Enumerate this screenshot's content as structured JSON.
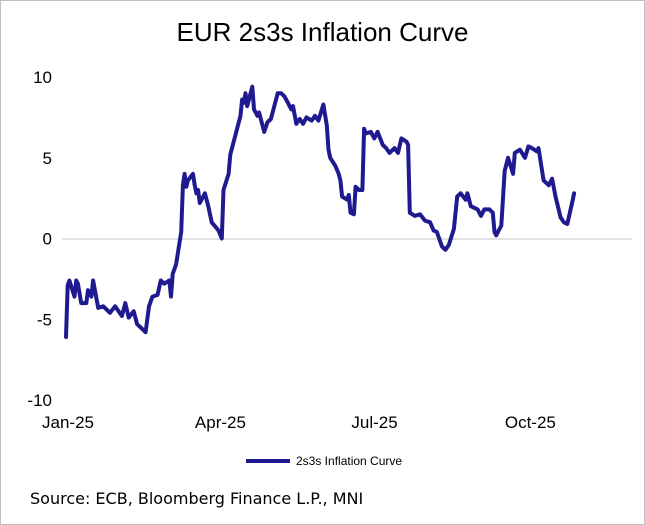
{
  "colors": {
    "series": "#1f1a8f",
    "axis": "#d9d9d9"
  },
  "source": "Source: ECB, Bloomberg Finance L.P., MNI",
  "chart_data": {
    "type": "line",
    "title": "EUR 2s3s Inflation Curve",
    "xlabel": "",
    "ylabel": "",
    "ylim": [
      -10,
      10
    ],
    "yticks": [
      "10",
      "5",
      "0",
      "-5",
      "-10"
    ],
    "xticks": [
      "Jan-25",
      "Apr-25",
      "Jul-25",
      "Oct-25"
    ],
    "xlim": [
      "2025-01-01",
      "2025-11-30"
    ],
    "grid": false,
    "legend_position": "bottom",
    "series": [
      {
        "name": "2s3s Inflation Curve",
        "points": [
          [
            "2025-01-01",
            -6.1
          ],
          [
            "2025-01-02",
            -2.9
          ],
          [
            "2025-01-03",
            -2.6
          ],
          [
            "2025-01-06",
            -3.6
          ],
          [
            "2025-01-07",
            -2.6
          ],
          [
            "2025-01-08",
            -2.8
          ],
          [
            "2025-01-10",
            -4.0
          ],
          [
            "2025-01-13",
            -4.0
          ],
          [
            "2025-01-14",
            -3.2
          ],
          [
            "2025-01-16",
            -3.6
          ],
          [
            "2025-01-17",
            -2.6
          ],
          [
            "2025-01-20",
            -4.3
          ],
          [
            "2025-01-23",
            -4.2
          ],
          [
            "2025-01-27",
            -4.6
          ],
          [
            "2025-01-30",
            -4.2
          ],
          [
            "2025-02-03",
            -4.8
          ],
          [
            "2025-02-05",
            -4.0
          ],
          [
            "2025-02-07",
            -4.9
          ],
          [
            "2025-02-10",
            -4.5
          ],
          [
            "2025-02-12",
            -5.3
          ],
          [
            "2025-02-14",
            -5.5
          ],
          [
            "2025-02-17",
            -5.8
          ],
          [
            "2025-02-19",
            -4.2
          ],
          [
            "2025-02-21",
            -3.6
          ],
          [
            "2025-02-24",
            -3.5
          ],
          [
            "2025-02-26",
            -2.6
          ],
          [
            "2025-02-28",
            -2.8
          ],
          [
            "2025-03-03",
            -2.6
          ],
          [
            "2025-03-04",
            -3.6
          ],
          [
            "2025-03-05",
            -2.2
          ],
          [
            "2025-03-07",
            -1.6
          ],
          [
            "2025-03-10",
            0.4
          ],
          [
            "2025-03-11",
            3.3
          ],
          [
            "2025-03-12",
            4.0
          ],
          [
            "2025-03-13",
            3.2
          ],
          [
            "2025-03-14",
            3.6
          ],
          [
            "2025-03-17",
            4.0
          ],
          [
            "2025-03-18",
            3.3
          ],
          [
            "2025-03-19",
            2.8
          ],
          [
            "2025-03-20",
            3.0
          ],
          [
            "2025-03-21",
            2.2
          ],
          [
            "2025-03-24",
            2.8
          ],
          [
            "2025-03-26",
            2.0
          ],
          [
            "2025-03-28",
            1.0
          ],
          [
            "2025-04-01",
            0.5
          ],
          [
            "2025-04-03",
            0.0
          ],
          [
            "2025-04-04",
            3.0
          ],
          [
            "2025-04-07",
            4.0
          ],
          [
            "2025-04-08",
            5.2
          ],
          [
            "2025-04-10",
            6.0
          ],
          [
            "2025-04-14",
            7.6
          ],
          [
            "2025-04-15",
            8.6
          ],
          [
            "2025-04-16",
            8.4
          ],
          [
            "2025-04-17",
            9.0
          ],
          [
            "2025-04-18",
            8.2
          ],
          [
            "2025-04-21",
            9.4
          ],
          [
            "2025-04-22",
            8.0
          ],
          [
            "2025-04-24",
            7.6
          ],
          [
            "2025-04-25",
            7.8
          ],
          [
            "2025-04-28",
            6.6
          ],
          [
            "2025-04-30",
            7.2
          ],
          [
            "2025-05-02",
            7.4
          ],
          [
            "2025-05-06",
            9.0
          ],
          [
            "2025-05-08",
            9.0
          ],
          [
            "2025-05-10",
            8.8
          ],
          [
            "2025-05-12",
            8.4
          ],
          [
            "2025-05-14",
            8.0
          ],
          [
            "2025-05-15",
            8.2
          ],
          [
            "2025-05-17",
            7.1
          ],
          [
            "2025-05-19",
            7.4
          ],
          [
            "2025-05-21",
            7.1
          ],
          [
            "2025-05-23",
            7.5
          ],
          [
            "2025-05-26",
            7.3
          ],
          [
            "2025-05-28",
            7.6
          ],
          [
            "2025-05-30",
            7.3
          ],
          [
            "2025-06-02",
            8.3
          ],
          [
            "2025-06-04",
            7.0
          ],
          [
            "2025-06-05",
            5.5
          ],
          [
            "2025-06-06",
            5.0
          ],
          [
            "2025-06-09",
            4.5
          ],
          [
            "2025-06-11",
            4.0
          ],
          [
            "2025-06-12",
            3.6
          ],
          [
            "2025-06-13",
            2.6
          ],
          [
            "2025-06-16",
            2.4
          ],
          [
            "2025-06-17",
            2.7
          ],
          [
            "2025-06-18",
            1.6
          ],
          [
            "2025-06-20",
            1.5
          ],
          [
            "2025-06-21",
            3.2
          ],
          [
            "2025-06-23",
            3.0
          ],
          [
            "2025-06-25",
            3.0
          ],
          [
            "2025-06-26",
            6.8
          ],
          [
            "2025-06-27",
            6.5
          ],
          [
            "2025-06-30",
            6.6
          ],
          [
            "2025-07-02",
            6.2
          ],
          [
            "2025-07-04",
            6.6
          ],
          [
            "2025-07-07",
            5.8
          ],
          [
            "2025-07-09",
            5.6
          ],
          [
            "2025-07-11",
            5.3
          ],
          [
            "2025-07-14",
            5.6
          ],
          [
            "2025-07-16",
            5.3
          ],
          [
            "2025-07-18",
            6.2
          ],
          [
            "2025-07-21",
            6.0
          ],
          [
            "2025-07-22",
            5.8
          ],
          [
            "2025-07-23",
            1.6
          ],
          [
            "2025-07-26",
            1.4
          ],
          [
            "2025-07-29",
            1.5
          ],
          [
            "2025-08-01",
            1.1
          ],
          [
            "2025-08-04",
            1.0
          ],
          [
            "2025-08-06",
            0.5
          ],
          [
            "2025-08-08",
            0.4
          ],
          [
            "2025-08-11",
            -0.5
          ],
          [
            "2025-08-13",
            -0.7
          ],
          [
            "2025-08-15",
            -0.4
          ],
          [
            "2025-08-18",
            0.6
          ],
          [
            "2025-08-20",
            2.6
          ],
          [
            "2025-08-22",
            2.8
          ],
          [
            "2025-08-25",
            2.4
          ],
          [
            "2025-08-26",
            2.8
          ],
          [
            "2025-08-28",
            2.0
          ],
          [
            "2025-09-01",
            1.8
          ],
          [
            "2025-09-03",
            1.4
          ],
          [
            "2025-09-05",
            1.8
          ],
          [
            "2025-09-08",
            1.8
          ],
          [
            "2025-09-10",
            1.6
          ],
          [
            "2025-09-11",
            0.4
          ],
          [
            "2025-09-12",
            0.2
          ],
          [
            "2025-09-15",
            0.8
          ],
          [
            "2025-09-17",
            4.2
          ],
          [
            "2025-09-19",
            5.0
          ],
          [
            "2025-09-22",
            4.0
          ],
          [
            "2025-09-23",
            5.3
          ],
          [
            "2025-09-26",
            5.5
          ],
          [
            "2025-09-29",
            5.0
          ],
          [
            "2025-10-01",
            5.7
          ],
          [
            "2025-10-03",
            5.6
          ],
          [
            "2025-10-06",
            5.4
          ],
          [
            "2025-10-07",
            5.6
          ],
          [
            "2025-10-10",
            3.6
          ],
          [
            "2025-10-13",
            3.3
          ],
          [
            "2025-10-15",
            3.7
          ],
          [
            "2025-10-17",
            2.6
          ],
          [
            "2025-10-20",
            1.3
          ],
          [
            "2025-10-22",
            1.0
          ],
          [
            "2025-10-24",
            0.9
          ],
          [
            "2025-10-27",
            2.3
          ],
          [
            "2025-10-28",
            2.8
          ]
        ]
      }
    ]
  }
}
